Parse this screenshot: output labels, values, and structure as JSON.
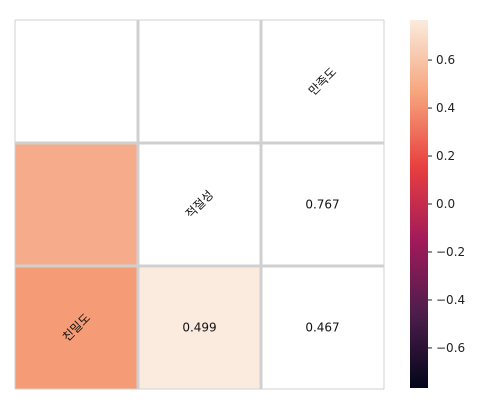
{
  "chart_data": {
    "type": "heatmap",
    "variables": [
      "친밀도",
      "적절성",
      "만족도"
    ],
    "cells": [
      {
        "row": 0,
        "col": 0,
        "label": "",
        "value": null,
        "diagonal": false,
        "color": "#ffffff"
      },
      {
        "row": 0,
        "col": 1,
        "label": "",
        "value": null,
        "diagonal": false,
        "color": "#ffffff"
      },
      {
        "row": 0,
        "col": 2,
        "label": "만족도",
        "value": null,
        "diagonal": true,
        "color": "#ffffff"
      },
      {
        "row": 1,
        "col": 0,
        "label": "",
        "value": 0.5,
        "diagonal": false,
        "color": "#f6ac8a"
      },
      {
        "row": 1,
        "col": 1,
        "label": "적절성",
        "value": null,
        "diagonal": true,
        "color": "#ffffff"
      },
      {
        "row": 1,
        "col": 2,
        "label": "0.767",
        "value": 0.767,
        "diagonal": false,
        "color": "#ffffff"
      },
      {
        "row": 2,
        "col": 0,
        "label": "친밀도",
        "value": 0.43,
        "diagonal": true,
        "color": "#f59c76"
      },
      {
        "row": 2,
        "col": 1,
        "label": "0.499",
        "value": 0.499,
        "diagonal": false,
        "color": "#fbebdf"
      },
      {
        "row": 2,
        "col": 2,
        "label": "0.467",
        "value": 0.467,
        "diagonal": false,
        "color": "#ffffff"
      }
    ],
    "colorbar": {
      "vmin": -0.767,
      "vmax": 0.767,
      "ticks": [
        "0.6",
        "0.4",
        "0.2",
        "0.0",
        "−0.2",
        "−0.4",
        "−0.6"
      ],
      "tick_values": [
        0.6,
        0.4,
        0.2,
        0.0,
        -0.2,
        -0.4,
        -0.6
      ],
      "stops": [
        "#03051a",
        "#4c1d4b",
        "#a11a5b",
        "#e83f3f",
        "#f6a47c",
        "#faebdd"
      ]
    },
    "grid": true,
    "grid_color": "#d0d0d0",
    "title": "",
    "xlabel": "",
    "ylabel": ""
  }
}
